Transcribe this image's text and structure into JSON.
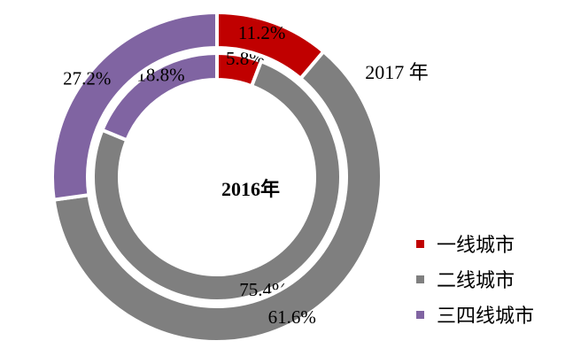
{
  "chart_data": {
    "type": "donut",
    "categories": [
      "一线城市",
      "二线城市",
      "三四线城市"
    ],
    "colors": [
      "#c00000",
      "#7f7f7f",
      "#8064a2"
    ],
    "series": [
      {
        "name": "2016年",
        "values": [
          5.8,
          75.4,
          18.8
        ],
        "labels": [
          "5.8%",
          "75.4%",
          "18.8%"
        ]
      },
      {
        "name": "2017 年",
        "values": [
          11.2,
          61.6,
          27.2
        ],
        "labels": [
          "11.2%",
          "61.6%",
          "27.2%"
        ]
      }
    ],
    "legend_position": "bottom-right",
    "grid": false
  },
  "legend": {
    "items": [
      {
        "label": "一线城市",
        "color": "#c00000"
      },
      {
        "label": "二线城市",
        "color": "#7f7f7f"
      },
      {
        "label": "三四线城市",
        "color": "#8064a2"
      }
    ]
  }
}
